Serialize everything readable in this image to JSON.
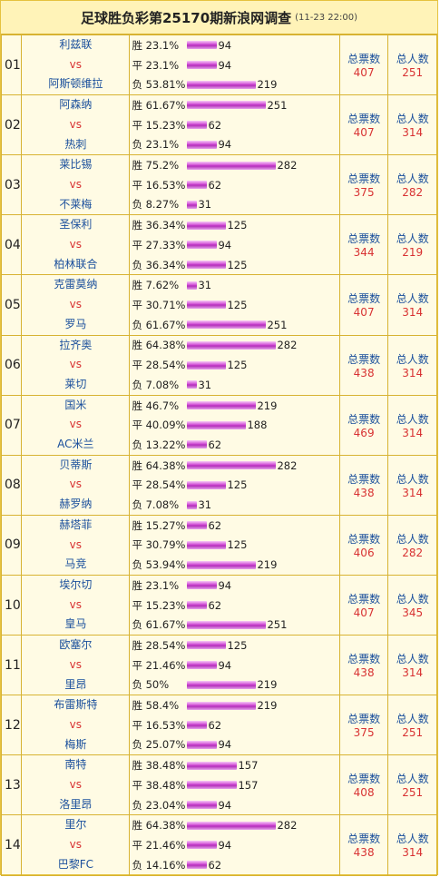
{
  "header": {
    "title": "足球胜负彩第25170期新浪网调查",
    "time": "(11-23 22:00)"
  },
  "labels": {
    "vs": "vs",
    "win": "胜",
    "draw": "平",
    "lose": "负",
    "total_votes": "总票数",
    "total_people": "总人数"
  },
  "colors": {
    "bar": "#c33bc8",
    "team": "#1a4f9c",
    "value": "#d83232",
    "border": "#d8b332"
  },
  "matches": [
    {
      "no": "01",
      "home": "利兹联",
      "away": "阿斯顿维拉",
      "win_pct": "23.1%",
      "win_n": 94,
      "draw_pct": "23.1%",
      "draw_n": 94,
      "lose_pct": "53.81%",
      "lose_n": 219,
      "votes": "407",
      "people": "251"
    },
    {
      "no": "02",
      "home": "阿森纳",
      "away": "热刺",
      "win_pct": "61.67%",
      "win_n": 251,
      "draw_pct": "15.23%",
      "draw_n": 62,
      "lose_pct": "23.1%",
      "lose_n": 94,
      "votes": "407",
      "people": "314"
    },
    {
      "no": "03",
      "home": "莱比锡",
      "away": "不莱梅",
      "win_pct": "75.2%",
      "win_n": 282,
      "draw_pct": "16.53%",
      "draw_n": 62,
      "lose_pct": "8.27%",
      "lose_n": 31,
      "votes": "375",
      "people": "282"
    },
    {
      "no": "04",
      "home": "圣保利",
      "away": "柏林联合",
      "win_pct": "36.34%",
      "win_n": 125,
      "draw_pct": "27.33%",
      "draw_n": 94,
      "lose_pct": "36.34%",
      "lose_n": 125,
      "votes": "344",
      "people": "219"
    },
    {
      "no": "05",
      "home": "克雷莫纳",
      "away": "罗马",
      "win_pct": "7.62%",
      "win_n": 31,
      "draw_pct": "30.71%",
      "draw_n": 125,
      "lose_pct": "61.67%",
      "lose_n": 251,
      "votes": "407",
      "people": "314"
    },
    {
      "no": "06",
      "home": "拉齐奥",
      "away": "莱切",
      "win_pct": "64.38%",
      "win_n": 282,
      "draw_pct": "28.54%",
      "draw_n": 125,
      "lose_pct": "7.08%",
      "lose_n": 31,
      "votes": "438",
      "people": "314"
    },
    {
      "no": "07",
      "home": "国米",
      "away": "AC米兰",
      "win_pct": "46.7%",
      "win_n": 219,
      "draw_pct": "40.09%",
      "draw_n": 188,
      "lose_pct": "13.22%",
      "lose_n": 62,
      "votes": "469",
      "people": "314"
    },
    {
      "no": "08",
      "home": "贝蒂斯",
      "away": "赫罗纳",
      "win_pct": "64.38%",
      "win_n": 282,
      "draw_pct": "28.54%",
      "draw_n": 125,
      "lose_pct": "7.08%",
      "lose_n": 31,
      "votes": "438",
      "people": "314"
    },
    {
      "no": "09",
      "home": "赫塔菲",
      "away": "马竞",
      "win_pct": "15.27%",
      "win_n": 62,
      "draw_pct": "30.79%",
      "draw_n": 125,
      "lose_pct": "53.94%",
      "lose_n": 219,
      "votes": "406",
      "people": "282"
    },
    {
      "no": "10",
      "home": "埃尔切",
      "away": "皇马",
      "win_pct": "23.1%",
      "win_n": 94,
      "draw_pct": "15.23%",
      "draw_n": 62,
      "lose_pct": "61.67%",
      "lose_n": 251,
      "votes": "407",
      "people": "345"
    },
    {
      "no": "11",
      "home": "欧塞尔",
      "away": "里昂",
      "win_pct": "28.54%",
      "win_n": 125,
      "draw_pct": "21.46%",
      "draw_n": 94,
      "lose_pct": "50%",
      "lose_n": 219,
      "votes": "438",
      "people": "314"
    },
    {
      "no": "12",
      "home": "布雷斯特",
      "away": "梅斯",
      "win_pct": "58.4%",
      "win_n": 219,
      "draw_pct": "16.53%",
      "draw_n": 62,
      "lose_pct": "25.07%",
      "lose_n": 94,
      "votes": "375",
      "people": "251"
    },
    {
      "no": "13",
      "home": "南特",
      "away": "洛里昂",
      "win_pct": "38.48%",
      "win_n": 157,
      "draw_pct": "38.48%",
      "draw_n": 157,
      "lose_pct": "23.04%",
      "lose_n": 94,
      "votes": "408",
      "people": "251"
    },
    {
      "no": "14",
      "home": "里尔",
      "away": "巴黎FC",
      "win_pct": "64.38%",
      "win_n": 282,
      "draw_pct": "21.46%",
      "draw_n": 94,
      "lose_pct": "14.16%",
      "lose_n": 62,
      "votes": "438",
      "people": "314"
    }
  ]
}
